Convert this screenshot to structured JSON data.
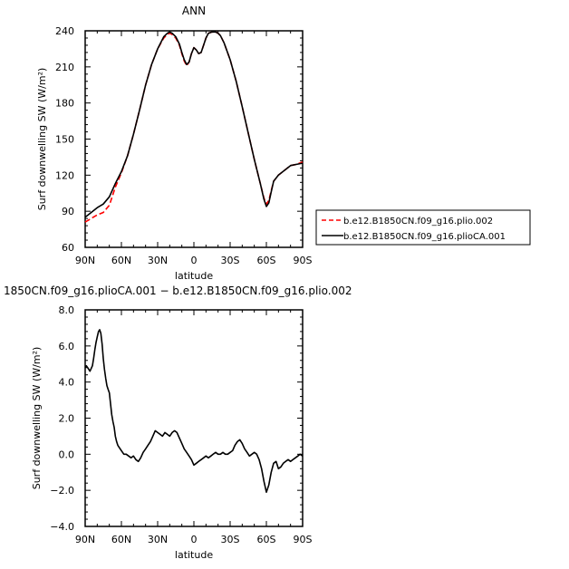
{
  "chart_data": [
    {
      "type": "line",
      "title": "ANN",
      "xlabel": "latitude",
      "ylabel": "Surf downwelling SW (W/m²)",
      "xlim": [
        90,
        -90
      ],
      "ylim": [
        60,
        240
      ],
      "x_ticks": [
        90,
        60,
        30,
        0,
        -30,
        -60,
        -90
      ],
      "x_tick_labels": [
        "90N",
        "60N",
        "30N",
        "0",
        "30S",
        "60S",
        "90S"
      ],
      "y_ticks": [
        60,
        90,
        120,
        150,
        180,
        210,
        240
      ],
      "y_tick_labels": [
        "60",
        "90",
        "120",
        "150",
        "180",
        "210",
        "240"
      ],
      "grid": false,
      "legend_position": "outside-right",
      "series": [
        {
          "name": "b.e12.B1850CN.f09_g16.plio.002",
          "color": "#ff0000",
          "dash": "dashed",
          "x": [
            90,
            85,
            80,
            75,
            70,
            65,
            60,
            55,
            50,
            45,
            40,
            35,
            30,
            25,
            22,
            20,
            18,
            15,
            12,
            10,
            8,
            6,
            4,
            2,
            0,
            -2,
            -4,
            -6,
            -8,
            -10,
            -12,
            -15,
            -18,
            -20,
            -22,
            -25,
            -30,
            -35,
            -40,
            -45,
            -50,
            -55,
            -58,
            -60,
            -62,
            -64,
            -66,
            -70,
            -75,
            -80,
            -85,
            -90
          ],
          "y": [
            81,
            84,
            87,
            89,
            95,
            110,
            122,
            136,
            154,
            174,
            195,
            212,
            225,
            234,
            237,
            238,
            237,
            234,
            228,
            221,
            215,
            211,
            214,
            221,
            226,
            224,
            221,
            222,
            228,
            234,
            238,
            239,
            239,
            238,
            236,
            230,
            216,
            198,
            177,
            155,
            133,
            113,
            101,
            96,
            99,
            107,
            115,
            120,
            124,
            128,
            129,
            131
          ]
        },
        {
          "name": "b.e12.B1850CN.f09_g16.plioCA.001",
          "color": "#000000",
          "dash": "solid",
          "x": [
            90,
            85,
            80,
            75,
            70,
            65,
            60,
            55,
            50,
            45,
            40,
            35,
            30,
            25,
            22,
            20,
            18,
            15,
            12,
            10,
            8,
            6,
            4,
            2,
            0,
            -2,
            -4,
            -6,
            -8,
            -10,
            -12,
            -15,
            -18,
            -20,
            -22,
            -25,
            -30,
            -35,
            -40,
            -45,
            -50,
            -55,
            -58,
            -60,
            -62,
            -64,
            -66,
            -70,
            -75,
            -80,
            -85,
            -90
          ],
          "y": [
            85,
            89,
            93,
            96,
            102,
            113,
            123,
            136,
            154,
            174,
            195,
            212,
            225,
            235,
            238,
            239,
            238,
            235,
            229,
            222,
            216,
            212,
            214,
            221,
            226,
            224,
            221,
            222,
            228,
            234,
            238,
            239,
            239,
            238,
            236,
            230,
            216,
            198,
            177,
            155,
            133,
            113,
            100,
            94,
            97,
            106,
            115,
            120,
            124,
            128,
            129,
            130
          ]
        }
      ]
    },
    {
      "type": "line",
      "title": "1850CN.f09_g16.plioCA.001 − b.e12.B1850CN.f09_g16.plio.002",
      "xlabel": "latitude",
      "ylabel": "Surf downwelling SW (W/m²)",
      "xlim": [
        90,
        -90
      ],
      "ylim": [
        -4,
        8
      ],
      "x_ticks": [
        90,
        60,
        30,
        0,
        -30,
        -60,
        -90
      ],
      "x_tick_labels": [
        "90N",
        "60N",
        "30N",
        "0",
        "30S",
        "60S",
        "90S"
      ],
      "y_ticks": [
        -4,
        -2,
        0,
        2,
        4,
        6,
        8
      ],
      "y_tick_labels": [
        "−4.0",
        "−2.0",
        "0.0",
        "2.0",
        "4.0",
        "6.0",
        "8.0"
      ],
      "grid": false,
      "series": [
        {
          "name": "",
          "color": "#000000",
          "dash": "solid",
          "x": [
            90,
            89,
            88,
            86,
            84,
            83,
            82,
            81,
            80,
            79,
            78,
            77,
            76,
            75,
            74,
            73,
            72,
            71,
            70,
            69,
            68,
            67,
            66,
            65,
            64,
            63,
            62,
            60,
            58,
            56,
            54,
            52,
            50,
            48,
            46,
            44,
            42,
            40,
            38,
            36,
            34,
            32,
            30,
            28,
            26,
            24,
            22,
            20,
            18,
            16,
            14,
            12,
            10,
            8,
            6,
            4,
            2,
            0,
            -2,
            -4,
            -6,
            -8,
            -10,
            -12,
            -14,
            -16,
            -18,
            -20,
            -22,
            -24,
            -26,
            -28,
            -30,
            -32,
            -34,
            -36,
            -38,
            -40,
            -42,
            -44,
            -46,
            -48,
            -50,
            -52,
            -54,
            -56,
            -58,
            -60,
            -62,
            -64,
            -66,
            -68,
            -70,
            -72,
            -74,
            -76,
            -78,
            -80,
            -82,
            -84,
            -86,
            -88,
            -90
          ],
          "y": [
            4.8,
            4.9,
            4.8,
            4.6,
            4.9,
            5.3,
            5.8,
            6.2,
            6.5,
            6.8,
            6.9,
            6.7,
            6.1,
            5.3,
            4.7,
            4.2,
            3.8,
            3.6,
            3.4,
            2.8,
            2.2,
            1.8,
            1.5,
            1.0,
            0.7,
            0.5,
            0.4,
            0.2,
            0.0,
            0.0,
            -0.1,
            -0.2,
            -0.1,
            -0.3,
            -0.4,
            -0.2,
            0.1,
            0.3,
            0.5,
            0.7,
            1.0,
            1.3,
            1.2,
            1.1,
            1.0,
            1.2,
            1.1,
            1.0,
            1.2,
            1.3,
            1.2,
            0.9,
            0.6,
            0.3,
            0.1,
            -0.1,
            -0.3,
            -0.6,
            -0.5,
            -0.4,
            -0.3,
            -0.2,
            -0.1,
            -0.2,
            -0.1,
            0.0,
            0.1,
            0.0,
            0.0,
            0.1,
            0.0,
            0.0,
            0.1,
            0.2,
            0.5,
            0.7,
            0.8,
            0.6,
            0.3,
            0.1,
            -0.1,
            0.0,
            0.1,
            0.0,
            -0.3,
            -0.8,
            -1.5,
            -2.1,
            -1.7,
            -1.0,
            -0.5,
            -0.4,
            -0.8,
            -0.7,
            -0.5,
            -0.4,
            -0.3,
            -0.4,
            -0.3,
            -0.2,
            -0.1,
            0.0,
            -0.1
          ]
        }
      ]
    }
  ]
}
